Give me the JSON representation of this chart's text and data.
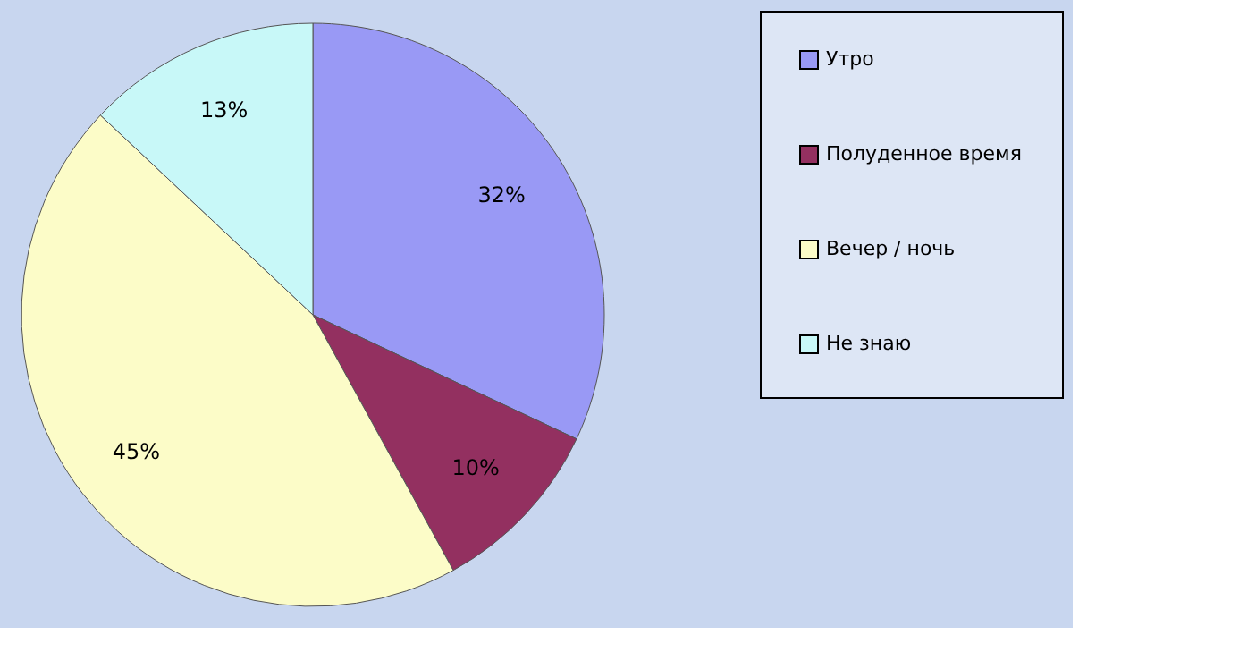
{
  "chart_data": {
    "type": "pie",
    "categories": [
      "Утро",
      "Полуденное время",
      "Вечер / ночь",
      "Не знаю"
    ],
    "values": [
      32,
      10,
      45,
      13
    ],
    "value_labels": [
      "32%",
      "10%",
      "45%",
      "13%"
    ],
    "colors": [
      "#9999f5",
      "#933060",
      "#fcfcc8",
      "#c8f8f8"
    ],
    "legend": "right"
  }
}
